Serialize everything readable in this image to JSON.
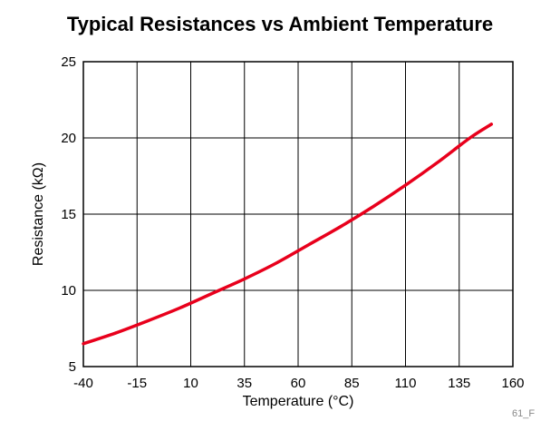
{
  "chart_data": {
    "type": "line",
    "title": "Typical Resistances vs Ambient Temperature",
    "xlabel": "Temperature (°C)",
    "ylabel": "Resistance (kΩ)",
    "xlim": [
      -40,
      160
    ],
    "ylim": [
      5,
      25
    ],
    "xticks": [
      -40,
      -15,
      10,
      35,
      60,
      85,
      110,
      135,
      160
    ],
    "yticks": [
      5,
      10,
      15,
      20,
      25
    ],
    "grid": true,
    "series": [
      {
        "color": "#e8001c",
        "x": [
          -40,
          -25,
          -10,
          5,
          20,
          35,
          50,
          65,
          80,
          95,
          110,
          125,
          140,
          150
        ],
        "y": [
          6.5,
          7.2,
          8.0,
          8.85,
          9.8,
          10.75,
          11.8,
          13.0,
          14.2,
          15.5,
          16.9,
          18.4,
          20.0,
          20.9
        ]
      }
    ],
    "footnote": "61_F"
  }
}
